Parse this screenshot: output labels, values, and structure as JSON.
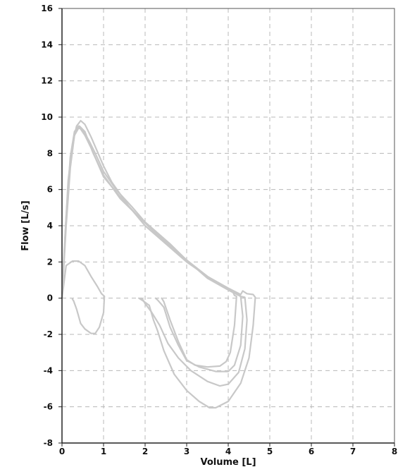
{
  "chart_data": {
    "type": "line",
    "title": "",
    "xlabel": "Volume [L]",
    "ylabel": "Flow [L/s]",
    "xlim": [
      0,
      8
    ],
    "ylim": [
      -8,
      16
    ],
    "x_ticks": [
      "0",
      "1",
      "2",
      "3",
      "4",
      "5",
      "6",
      "7",
      "8"
    ],
    "y_ticks": [
      "-8",
      "-6",
      "-4",
      "-2",
      "0",
      "2",
      "4",
      "6",
      "8",
      "10",
      "12",
      "14",
      "16"
    ],
    "grid": true,
    "line_color": "#c8c8c8",
    "series": [
      {
        "points": [
          [
            0,
            0
          ],
          [
            0.05,
            2.5
          ],
          [
            0.15,
            6.5
          ],
          [
            0.25,
            8.5
          ],
          [
            0.35,
            9.5
          ],
          [
            0.45,
            9.8
          ],
          [
            0.55,
            9.6
          ],
          [
            0.7,
            8.9
          ],
          [
            0.85,
            8.1
          ],
          [
            1.0,
            7.3
          ],
          [
            1.2,
            6.4
          ],
          [
            1.6,
            5.1
          ],
          [
            2.0,
            4.0
          ],
          [
            2.5,
            3.0
          ],
          [
            3.0,
            2.0
          ],
          [
            3.5,
            1.2
          ],
          [
            4.0,
            0.55
          ],
          [
            4.3,
            0.2
          ],
          [
            4.35,
            0.4
          ],
          [
            4.45,
            0.25
          ],
          [
            4.6,
            0.2
          ],
          [
            4.65,
            0.05
          ],
          [
            4.6,
            -1.5
          ],
          [
            4.5,
            -3.3
          ],
          [
            4.3,
            -4.7
          ],
          [
            4.0,
            -5.7
          ],
          [
            3.7,
            -6.05
          ],
          [
            3.55,
            -6.05
          ],
          [
            3.3,
            -5.7
          ],
          [
            3.0,
            -5.1
          ],
          [
            2.7,
            -4.2
          ],
          [
            2.45,
            -2.9
          ],
          [
            2.3,
            -1.8
          ],
          [
            2.2,
            -1.2
          ],
          [
            2.1,
            -0.4
          ],
          [
            1.95,
            -0.15
          ],
          [
            1.85,
            0
          ]
        ]
      },
      {
        "points": [
          [
            0,
            0
          ],
          [
            0.08,
            3.5
          ],
          [
            0.2,
            7.5
          ],
          [
            0.3,
            9.0
          ],
          [
            0.4,
            9.4
          ],
          [
            0.5,
            9.3
          ],
          [
            0.65,
            8.7
          ],
          [
            0.8,
            8.0
          ],
          [
            1.0,
            7.0
          ],
          [
            1.3,
            6.0
          ],
          [
            1.7,
            5.0
          ],
          [
            2.0,
            4.2
          ],
          [
            2.5,
            3.1
          ],
          [
            3.0,
            2.1
          ],
          [
            3.5,
            1.1
          ],
          [
            4.0,
            0.45
          ],
          [
            4.3,
            0.1
          ],
          [
            4.4,
            0.05
          ],
          [
            4.45,
            -1.2
          ],
          [
            4.4,
            -2.8
          ],
          [
            4.25,
            -4.1
          ],
          [
            4.0,
            -4.75
          ],
          [
            3.8,
            -4.85
          ],
          [
            3.5,
            -4.6
          ],
          [
            3.1,
            -4.0
          ],
          [
            2.8,
            -3.3
          ],
          [
            2.55,
            -2.5
          ],
          [
            2.35,
            -1.5
          ],
          [
            2.15,
            -0.75
          ],
          [
            2.0,
            -0.3
          ],
          [
            1.95,
            -0.1
          ],
          [
            1.9,
            0
          ]
        ]
      },
      {
        "points": [
          [
            0,
            0
          ],
          [
            0.1,
            4.5
          ],
          [
            0.2,
            7.8
          ],
          [
            0.3,
            9.2
          ],
          [
            0.4,
            9.5
          ],
          [
            0.55,
            9.0
          ],
          [
            0.7,
            8.3
          ],
          [
            1.0,
            6.7
          ],
          [
            1.4,
            5.6
          ],
          [
            1.8,
            4.6
          ],
          [
            2.2,
            3.8
          ],
          [
            2.6,
            3.0
          ],
          [
            3.0,
            2.1
          ],
          [
            3.5,
            1.2
          ],
          [
            3.8,
            0.75
          ],
          [
            4.0,
            0.5
          ],
          [
            4.2,
            0.3
          ],
          [
            4.3,
            0.1
          ],
          [
            4.35,
            -1.0
          ],
          [
            4.3,
            -2.6
          ],
          [
            4.15,
            -3.7
          ],
          [
            4.0,
            -4.05
          ],
          [
            3.7,
            -4.05
          ],
          [
            3.3,
            -3.8
          ],
          [
            3.0,
            -3.45
          ],
          [
            2.8,
            -2.6
          ],
          [
            2.6,
            -1.6
          ],
          [
            2.45,
            -0.5
          ],
          [
            2.3,
            -0.1
          ],
          [
            2.25,
            0
          ]
        ]
      },
      {
        "points": [
          [
            0,
            0
          ],
          [
            0.1,
            4.0
          ],
          [
            0.2,
            7.2
          ],
          [
            0.3,
            9.0
          ],
          [
            0.42,
            9.5
          ],
          [
            0.55,
            9.2
          ],
          [
            0.75,
            8.0
          ],
          [
            1.0,
            6.8
          ],
          [
            1.4,
            5.5
          ],
          [
            1.8,
            4.6
          ],
          [
            2.2,
            3.7
          ],
          [
            2.6,
            2.9
          ],
          [
            3.0,
            2.1
          ],
          [
            3.5,
            1.2
          ],
          [
            3.9,
            0.6
          ],
          [
            4.1,
            0.4
          ],
          [
            4.15,
            0.15
          ],
          [
            4.2,
            0.1
          ],
          [
            4.15,
            -1.5
          ],
          [
            4.05,
            -3.0
          ],
          [
            3.95,
            -3.5
          ],
          [
            3.8,
            -3.75
          ],
          [
            3.5,
            -3.8
          ],
          [
            3.2,
            -3.7
          ],
          [
            3.0,
            -3.4
          ],
          [
            2.8,
            -2.4
          ],
          [
            2.6,
            -1.2
          ],
          [
            2.45,
            -0.2
          ],
          [
            2.4,
            0
          ]
        ]
      },
      {
        "points": [
          [
            0,
            0
          ],
          [
            0.1,
            1.8
          ],
          [
            0.25,
            2.05
          ],
          [
            0.4,
            2.05
          ],
          [
            0.55,
            1.8
          ],
          [
            0.7,
            1.2
          ],
          [
            0.85,
            0.65
          ],
          [
            0.95,
            0.25
          ],
          [
            1.02,
            0.1
          ],
          [
            1.0,
            -0.8
          ],
          [
            0.9,
            -1.6
          ],
          [
            0.8,
            -1.95
          ],
          [
            0.7,
            -1.95
          ],
          [
            0.55,
            -1.7
          ],
          [
            0.45,
            -1.4
          ],
          [
            0.35,
            -0.6
          ],
          [
            0.28,
            -0.15
          ],
          [
            0.25,
            -0.05
          ]
        ]
      }
    ]
  }
}
